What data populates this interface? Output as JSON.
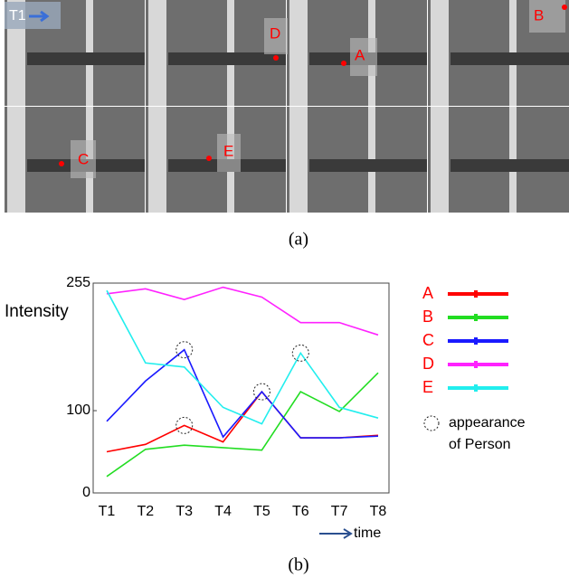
{
  "panel_a": {
    "frame_label": "T1",
    "markers": {
      "A": "A",
      "B": "B",
      "C": "C",
      "D": "D",
      "E": "E"
    },
    "caption": "(a)"
  },
  "chart_data": {
    "type": "line",
    "y_label": "Intensity",
    "x_label": "time",
    "categories": [
      "T1",
      "T2",
      "T3",
      "T4",
      "T5",
      "T6",
      "T7",
      "T8"
    ],
    "ylim": [
      0,
      255
    ],
    "yticks": [
      0,
      100,
      255
    ],
    "series": [
      {
        "name": "A",
        "color": "#ff0000",
        "values": [
          50,
          59,
          82,
          62,
          123,
          67,
          67,
          70
        ]
      },
      {
        "name": "B",
        "color": "#22dd22",
        "values": [
          20,
          53,
          58,
          55,
          52,
          123,
          99,
          146
        ]
      },
      {
        "name": "C",
        "color": "#1a1aff",
        "values": [
          87,
          136,
          174,
          68,
          123,
          67,
          67,
          69
        ]
      },
      {
        "name": "D",
        "color": "#ff22ff",
        "values": [
          242,
          248,
          235,
          250,
          238,
          207,
          207,
          192
        ]
      },
      {
        "name": "E",
        "color": "#22eeee",
        "values": [
          246,
          158,
          153,
          104,
          84,
          170,
          104,
          91
        ]
      }
    ],
    "annotation": [
      "appearance",
      "of Person"
    ],
    "caption": "(b)"
  }
}
